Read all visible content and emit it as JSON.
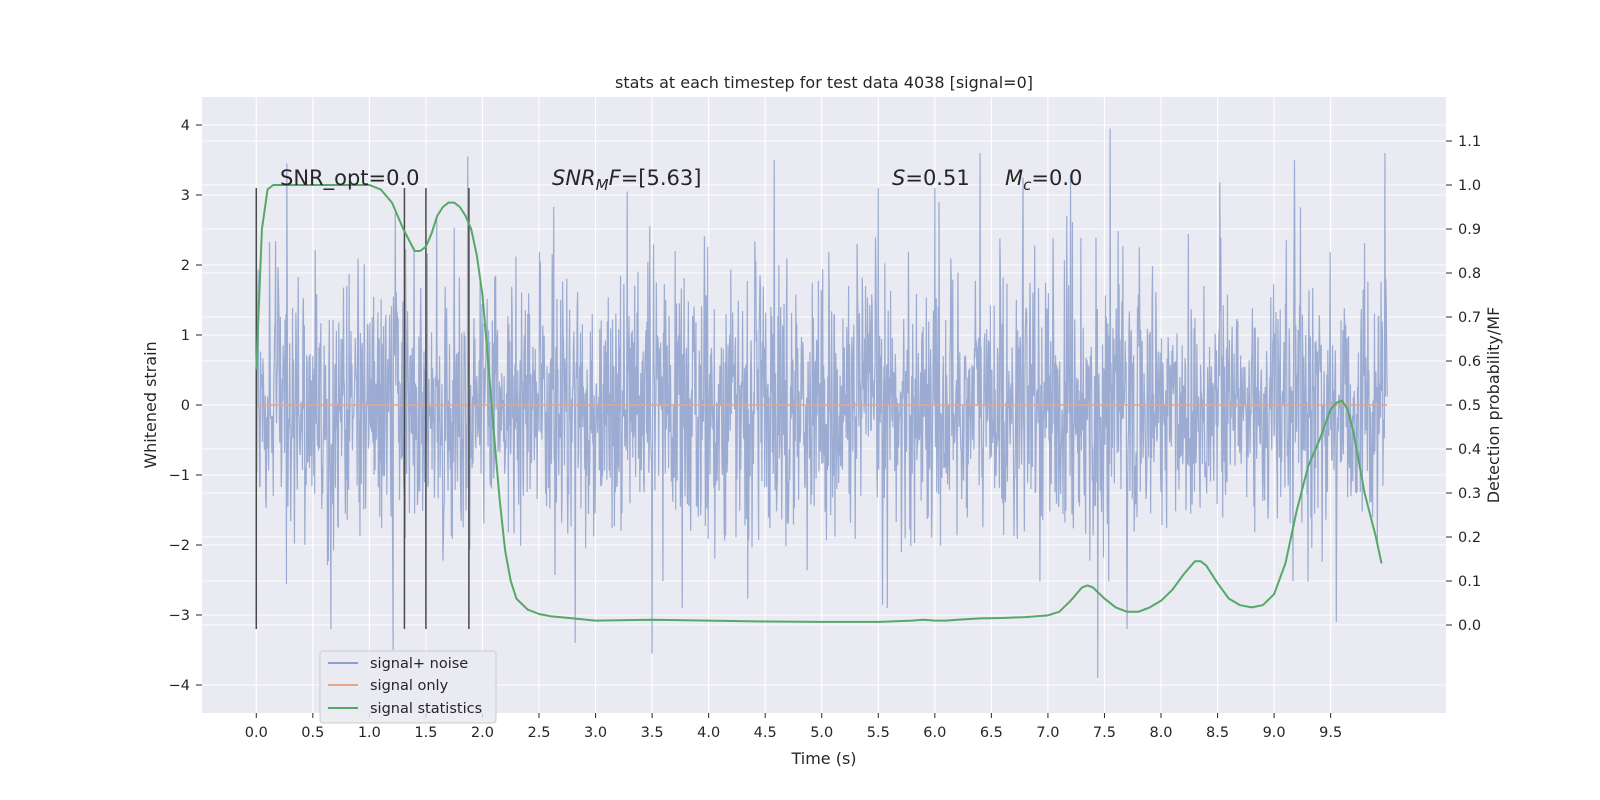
{
  "chart_data": {
    "type": "line",
    "title": "stats at each timestep for test data 4038 [signal=0]",
    "xlabel": "Time (s)",
    "ylabel_left": "Whitened strain",
    "ylabel_right": "Detection probability/MF",
    "xlim": [
      -0.48,
      10.52
    ],
    "ylim_left": [
      -4.4,
      4.4
    ],
    "ylim_right": [
      -0.2,
      1.2
    ],
    "x_ticks": [
      0.0,
      0.5,
      1.0,
      1.5,
      2.0,
      2.5,
      3.0,
      3.5,
      4.0,
      4.5,
      5.0,
      5.5,
      6.0,
      6.5,
      7.0,
      7.5,
      8.0,
      8.5,
      9.0,
      9.5
    ],
    "x_tick_labels": [
      "0.0",
      "0.5",
      "1.0",
      "1.5",
      "2.0",
      "2.5",
      "3.0",
      "3.5",
      "4.0",
      "4.5",
      "5.0",
      "5.5",
      "6.0",
      "6.5",
      "7.0",
      "7.5",
      "8.0",
      "8.5",
      "9.0",
      "9.5"
    ],
    "y_left_ticks": [
      -4,
      -3,
      -2,
      -1,
      0,
      1,
      2,
      3,
      4
    ],
    "y_left_tick_labels": [
      "−4",
      "−3",
      "−2",
      "−1",
      "0",
      "1",
      "2",
      "3",
      "4"
    ],
    "y_right_ticks": [
      0.0,
      0.1,
      0.2,
      0.3,
      0.4,
      0.5,
      0.6,
      0.7,
      0.8,
      0.9,
      1.0,
      1.1
    ],
    "y_right_tick_labels": [
      "0.0",
      "0.1",
      "0.2",
      "0.3",
      "0.4",
      "0.5",
      "0.6",
      "0.7",
      "0.8",
      "0.9",
      "1.0",
      "1.1"
    ],
    "grid": true,
    "legend_position": "lower-left",
    "series": [
      {
        "name": "signal+ noise",
        "axis": "left",
        "color": "#8da0cb",
        "kind": "dense-noise",
        "x_range": [
          0.0,
          10.0
        ],
        "core_range": [
          -1.3,
          1.3
        ],
        "typical_envelope": [
          -2.6,
          2.6
        ],
        "peaks": [
          [
            0.27,
            3.45
          ],
          [
            0.66,
            -3.2
          ],
          [
            1.21,
            -3.5
          ],
          [
            1.87,
            3.55
          ],
          [
            2.63,
            2.83
          ],
          [
            2.82,
            -3.4
          ],
          [
            3.28,
            3.05
          ],
          [
            3.5,
            -3.55
          ],
          [
            4.58,
            3.5
          ],
          [
            5.5,
            3.1
          ],
          [
            5.58,
            -2.9
          ],
          [
            6.0,
            3.1
          ],
          [
            6.4,
            3.6
          ],
          [
            6.78,
            3.25
          ],
          [
            7.2,
            3.3
          ],
          [
            7.44,
            -3.9
          ],
          [
            7.55,
            3.95
          ],
          [
            7.7,
            -3.2
          ],
          [
            8.52,
            3.18
          ],
          [
            9.18,
            3.5
          ],
          [
            9.55,
            -3.1
          ],
          [
            9.98,
            3.6
          ]
        ]
      },
      {
        "name": "signal only",
        "axis": "left",
        "color": "#e5a68a",
        "x": [
          0.0,
          10.0
        ],
        "y": [
          0.0,
          0.0
        ]
      },
      {
        "name": "signal statistics",
        "axis": "right",
        "color": "#55a868",
        "x": [
          0.0,
          0.05,
          0.1,
          0.15,
          0.2,
          0.3,
          0.5,
          0.8,
          1.0,
          1.1,
          1.2,
          1.3,
          1.4,
          1.45,
          1.5,
          1.55,
          1.6,
          1.65,
          1.7,
          1.75,
          1.8,
          1.85,
          1.9,
          1.95,
          2.0,
          2.05,
          2.1,
          2.15,
          2.2,
          2.25,
          2.3,
          2.4,
          2.5,
          2.6,
          2.8,
          3.0,
          3.5,
          4.0,
          4.5,
          5.0,
          5.5,
          5.8,
          5.9,
          6.0,
          6.1,
          6.2,
          6.4,
          6.6,
          6.8,
          7.0,
          7.1,
          7.2,
          7.3,
          7.35,
          7.4,
          7.5,
          7.6,
          7.7,
          7.8,
          7.9,
          8.0,
          8.1,
          8.2,
          8.3,
          8.35,
          8.4,
          8.5,
          8.6,
          8.7,
          8.8,
          8.9,
          9.0,
          9.1,
          9.2,
          9.3,
          9.4,
          9.5,
          9.55,
          9.6,
          9.65,
          9.7,
          9.75,
          9.8,
          9.9,
          9.95
        ],
        "y": [
          0.58,
          0.9,
          0.99,
          1.0,
          1.0,
          1.0,
          1.0,
          1.0,
          1.0,
          0.99,
          0.96,
          0.9,
          0.85,
          0.85,
          0.86,
          0.89,
          0.93,
          0.95,
          0.96,
          0.96,
          0.95,
          0.93,
          0.9,
          0.84,
          0.75,
          0.6,
          0.44,
          0.29,
          0.17,
          0.1,
          0.06,
          0.035,
          0.025,
          0.02,
          0.015,
          0.01,
          0.012,
          0.01,
          0.008,
          0.007,
          0.007,
          0.01,
          0.012,
          0.01,
          0.01,
          0.012,
          0.015,
          0.016,
          0.018,
          0.022,
          0.03,
          0.055,
          0.085,
          0.09,
          0.085,
          0.06,
          0.04,
          0.03,
          0.03,
          0.04,
          0.055,
          0.08,
          0.115,
          0.145,
          0.145,
          0.135,
          0.095,
          0.06,
          0.045,
          0.04,
          0.045,
          0.07,
          0.14,
          0.26,
          0.36,
          0.42,
          0.49,
          0.505,
          0.51,
          0.49,
          0.44,
          0.37,
          0.3,
          0.2,
          0.14
        ]
      }
    ],
    "vlines": [
      0.0,
      1.31,
      1.5,
      1.88
    ],
    "vline_color": "#4a4a4a",
    "vline_range": [
      -3.2,
      3.1
    ],
    "annotations": [
      {
        "text": "SNR_opt=0.0",
        "at": [
          0.2,
          3.1
        ]
      },
      {
        "text": "SNR_MF=[5.63]",
        "at": [
          2.6,
          3.1
        ],
        "parts": {
          "a": "SNR",
          "sub": "M",
          "b": "F=[5.63]"
        }
      },
      {
        "text": "S=0.51",
        "at": [
          5.62,
          3.1
        ],
        "parts": {
          "italic": "S",
          "rest": "=0.51"
        }
      },
      {
        "text": "M_c=0.0",
        "at": [
          6.62,
          3.1
        ],
        "parts": {
          "italic": "M",
          "sub": "c",
          "rest": "=0.0"
        }
      }
    ]
  }
}
